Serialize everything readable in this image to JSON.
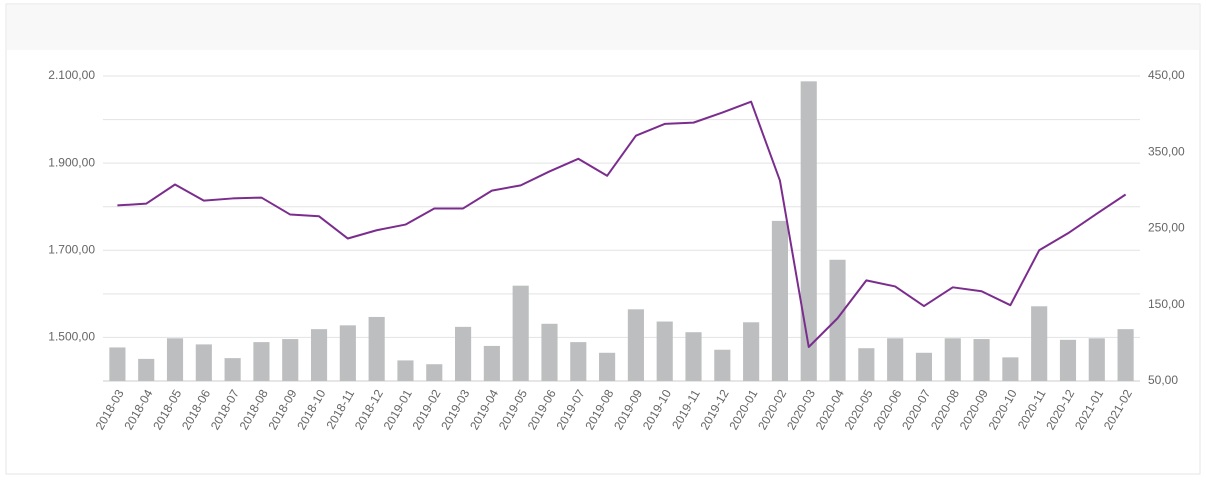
{
  "chart_data": {
    "type": "bar-line",
    "categories": [
      "2018-03",
      "2018-04",
      "2018-05",
      "2018-06",
      "2018-07",
      "2018-08",
      "2018-09",
      "2018-10",
      "2018-11",
      "2018-12",
      "2019-01",
      "2019-02",
      "2019-03",
      "2019-04",
      "2019-05",
      "2019-06",
      "2019-07",
      "2019-08",
      "2019-09",
      "2019-10",
      "2019-11",
      "2019-12",
      "2020-01",
      "2020-02",
      "2020-03",
      "2020-04",
      "2020-05",
      "2020-06",
      "2020-07",
      "2020-08",
      "2020-09",
      "2020-10",
      "2020-11",
      "2020-12",
      "2021-01",
      "2021-02"
    ],
    "series": [
      {
        "type": "line",
        "axis": "y",
        "color": "#7b2d8e",
        "values": [
          1803,
          1807,
          1851,
          1814,
          1819,
          1821,
          1782,
          1778,
          1727,
          1746,
          1759,
          1796,
          1796,
          1837,
          1849,
          1881,
          1910,
          1871,
          1963,
          1990,
          1993,
          2016,
          2041,
          1860,
          1478,
          1544,
          1631,
          1617,
          1572,
          1615,
          1606,
          1574,
          1700,
          1739,
          1784,
          1828
        ]
      },
      {
        "type": "bar",
        "axis": "y2",
        "color": "#bcbec0",
        "values": [
          94,
          79,
          106,
          98,
          80,
          101,
          105,
          118,
          123,
          134,
          77,
          72,
          121,
          96,
          175,
          125,
          101,
          87,
          144,
          128,
          114,
          91,
          127,
          260,
          443,
          209,
          93,
          106,
          87,
          106,
          105,
          81,
          148,
          104,
          106,
          118
        ]
      }
    ],
    "ylim": [
      1400,
      2100
    ],
    "yticks": [
      {
        "value": 1500,
        "label": "1.500,00"
      },
      {
        "value": 1700,
        "label": "1.700,00"
      },
      {
        "value": 1900,
        "label": "1.900,00"
      },
      {
        "value": 2100,
        "label": "2.100,00"
      }
    ],
    "ygrid": [
      1500,
      1600,
      1700,
      1800,
      1900,
      2000,
      2100
    ],
    "y2lim": [
      50,
      450
    ],
    "y2ticks": [
      {
        "value": 50,
        "label": "50,00"
      },
      {
        "value": 150,
        "label": "150,00"
      },
      {
        "value": 250,
        "label": "250,00"
      },
      {
        "value": 350,
        "label": "350,00"
      },
      {
        "value": 450,
        "label": "450,00"
      }
    ],
    "grid": true
  }
}
